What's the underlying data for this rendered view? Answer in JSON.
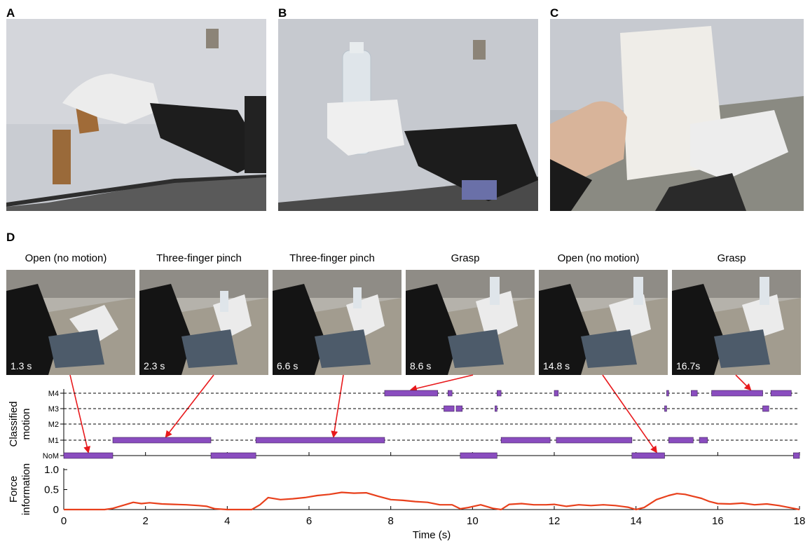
{
  "panels": {
    "A": {
      "letter": "A",
      "image": "prosthetic-hand-placing-wooden-block"
    },
    "B": {
      "letter": "B",
      "image": "prosthetic-hand-holding-plastic-bottle"
    },
    "C": {
      "letter": "C",
      "image": "prosthetic-hand-handing-paper-tray"
    },
    "D": {
      "letter": "D"
    }
  },
  "frames": [
    {
      "label": "Open (no motion)",
      "time": "1.3 s"
    },
    {
      "label": "Three-finger pinch",
      "time": "2.3 s"
    },
    {
      "label": "Three-finger pinch",
      "time": "6.6 s"
    },
    {
      "label": "Grasp",
      "time": "8.6 s"
    },
    {
      "label": "Open (no motion)",
      "time": "14.8 s"
    },
    {
      "label": "Grasp",
      "time": "16.7s"
    }
  ],
  "colors": {
    "motion_bar": "#8a4dbf",
    "force_line": "#e8401c",
    "arrow": "#e8191c"
  },
  "chart_data": [
    {
      "type": "timeline",
      "ylabel": "Classified motion",
      "xlim": [
        0,
        18
      ],
      "categories": [
        "NoM",
        "M1",
        "M2",
        "M3",
        "M4"
      ],
      "grid": "dashed horizontal",
      "segments": [
        {
          "class": "NoM",
          "start": 0.0,
          "end": 1.2
        },
        {
          "class": "NoM",
          "start": 3.6,
          "end": 4.7
        },
        {
          "class": "NoM",
          "start": 9.7,
          "end": 10.6
        },
        {
          "class": "NoM",
          "start": 13.9,
          "end": 14.7
        },
        {
          "class": "NoM",
          "start": 17.85,
          "end": 18.0
        },
        {
          "class": "M1",
          "start": 1.2,
          "end": 3.6
        },
        {
          "class": "M1",
          "start": 4.7,
          "end": 7.85
        },
        {
          "class": "M1",
          "start": 10.7,
          "end": 11.9
        },
        {
          "class": "M1",
          "start": 12.05,
          "end": 13.9
        },
        {
          "class": "M1",
          "start": 14.8,
          "end": 15.4
        },
        {
          "class": "M1",
          "start": 15.55,
          "end": 15.75
        },
        {
          "class": "M3",
          "start": 9.3,
          "end": 9.55
        },
        {
          "class": "M3",
          "start": 9.6,
          "end": 9.75
        },
        {
          "class": "M3",
          "start": 10.55,
          "end": 10.6
        },
        {
          "class": "M3",
          "start": 14.7,
          "end": 14.75
        },
        {
          "class": "M3",
          "start": 17.1,
          "end": 17.25
        },
        {
          "class": "M4",
          "start": 7.85,
          "end": 9.15
        },
        {
          "class": "M4",
          "start": 9.4,
          "end": 9.5
        },
        {
          "class": "M4",
          "start": 10.6,
          "end": 10.7
        },
        {
          "class": "M4",
          "start": 12.0,
          "end": 12.1
        },
        {
          "class": "M4",
          "start": 14.75,
          "end": 14.8
        },
        {
          "class": "M4",
          "start": 15.35,
          "end": 15.5
        },
        {
          "class": "M4",
          "start": 15.85,
          "end": 17.1
        },
        {
          "class": "M4",
          "start": 17.3,
          "end": 17.8
        }
      ]
    },
    {
      "type": "line",
      "ylabel": "Force information",
      "xlabel": "Time (s)",
      "xlim": [
        0,
        18
      ],
      "ylim": [
        0,
        1.0
      ],
      "x_ticks": [
        "0",
        "2",
        "4",
        "6",
        "8",
        "10",
        "12",
        "14",
        "16",
        "18"
      ],
      "y_ticks": [
        "0",
        "0.5",
        "1.0"
      ],
      "series": [
        {
          "x": [
            0,
            1.0,
            1.2,
            1.5,
            1.7,
            1.9,
            2.1,
            2.4,
            2.7,
            3.0,
            3.3,
            3.5,
            3.7,
            4.0,
            4.3,
            4.6,
            4.8,
            5.0,
            5.3,
            5.6,
            5.9,
            6.2,
            6.5,
            6.8,
            7.1,
            7.4,
            7.7,
            8.0,
            8.3,
            8.6,
            8.9,
            9.2,
            9.5,
            9.7,
            9.9,
            10.2,
            10.5,
            10.7,
            10.9,
            11.2,
            11.5,
            11.8,
            12.0,
            12.3,
            12.6,
            12.9,
            13.2,
            13.5,
            13.8,
            14.0,
            14.2,
            14.5,
            14.8,
            15.0,
            15.2,
            15.4,
            15.6,
            15.8,
            16.0,
            16.3,
            16.6,
            16.9,
            17.2,
            17.5,
            17.8,
            18.0
          ],
          "y": [
            0.0,
            0.0,
            0.03,
            0.12,
            0.18,
            0.15,
            0.17,
            0.14,
            0.13,
            0.12,
            0.1,
            0.08,
            0.02,
            0.0,
            0.0,
            0.0,
            0.12,
            0.3,
            0.25,
            0.27,
            0.3,
            0.35,
            0.38,
            0.43,
            0.41,
            0.42,
            0.33,
            0.25,
            0.23,
            0.2,
            0.18,
            0.12,
            0.12,
            0.02,
            0.05,
            0.12,
            0.03,
            0.0,
            0.13,
            0.15,
            0.12,
            0.12,
            0.13,
            0.08,
            0.12,
            0.1,
            0.12,
            0.1,
            0.06,
            0.0,
            0.05,
            0.25,
            0.35,
            0.4,
            0.38,
            0.33,
            0.28,
            0.2,
            0.15,
            0.14,
            0.16,
            0.12,
            0.14,
            0.1,
            0.04,
            0.0
          ]
        }
      ]
    }
  ],
  "arrows": [
    {
      "from_frame": 0,
      "to_class": "NoM",
      "to_time": 0.6
    },
    {
      "from_frame": 1,
      "to_class": "M1",
      "to_time": 2.5
    },
    {
      "from_frame": 2,
      "to_class": "M1",
      "to_time": 6.6
    },
    {
      "from_frame": 3,
      "to_class": "M4",
      "to_time": 8.5
    },
    {
      "from_frame": 4,
      "to_class": "NoM",
      "to_time": 14.5
    },
    {
      "from_frame": 5,
      "to_class": "M4",
      "to_time": 16.8
    }
  ]
}
